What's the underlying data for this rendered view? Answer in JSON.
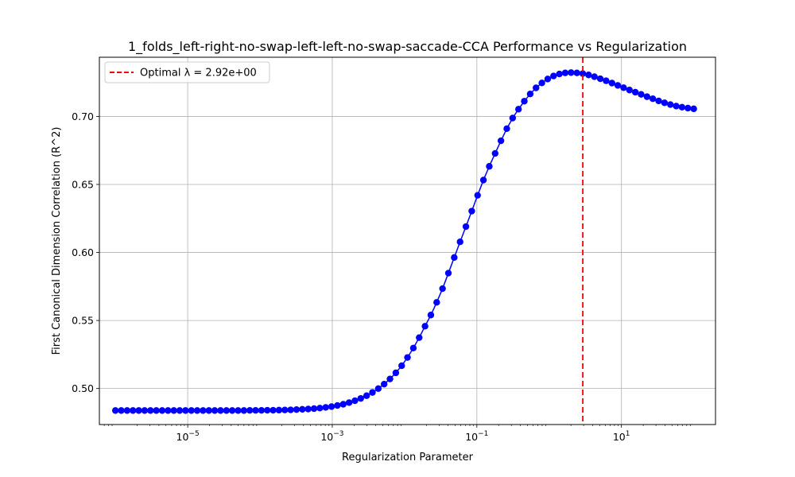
{
  "chart_data": {
    "type": "line",
    "title": "1_folds_left-right-no-swap-left-left-no-swap-saccade-CCA Performance vs Regularization",
    "xlabel": "Regularization Parameter",
    "ylabel": "First Canonical Dimension Correlation (R^2)",
    "xscale": "log",
    "xlim": [
      6e-07,
      200.0
    ],
    "ylim": [
      0.4735,
      0.7435
    ],
    "grid": true,
    "x_ticks": [
      {
        "value": 1e-05,
        "base": "10",
        "exp": "−5"
      },
      {
        "value": 0.001,
        "base": "10",
        "exp": "−3"
      },
      {
        "value": 0.1,
        "base": "10",
        "exp": "−1"
      },
      {
        "value": 10,
        "base": "10",
        "exp": "1"
      }
    ],
    "y_ticks": [
      "0.50",
      "0.55",
      "0.60",
      "0.65",
      "0.70"
    ],
    "series": [
      {
        "color": "#0000ff",
        "marker": "circle",
        "log10_x_start": -6,
        "log10_x_end": 2,
        "y": [
          0.4838,
          0.4838,
          0.4838,
          0.4838,
          0.4838,
          0.4838,
          0.4838,
          0.4838,
          0.4838,
          0.4838,
          0.4838,
          0.4838,
          0.4838,
          0.4838,
          0.4838,
          0.4838,
          0.4838,
          0.4838,
          0.4838,
          0.4838,
          0.4838,
          0.4838,
          0.4838,
          0.4839,
          0.4839,
          0.4839,
          0.484,
          0.484,
          0.4841,
          0.4842,
          0.4843,
          0.4845,
          0.4847,
          0.4849,
          0.4852,
          0.4856,
          0.4861,
          0.4867,
          0.4875,
          0.4884,
          0.4896,
          0.491,
          0.4927,
          0.4947,
          0.4971,
          0.4999,
          0.5032,
          0.507,
          0.5115,
          0.5167,
          0.5228,
          0.5297,
          0.5374,
          0.5458,
          0.554,
          0.5633,
          0.5734,
          0.5848,
          0.5963,
          0.6078,
          0.619,
          0.6304,
          0.642,
          0.6532,
          0.6633,
          0.6728,
          0.6821,
          0.691,
          0.6988,
          0.7053,
          0.7112,
          0.7165,
          0.721,
          0.7246,
          0.7275,
          0.7297,
          0.7312,
          0.732,
          0.7322,
          0.732,
          0.7315,
          0.7305,
          0.7292,
          0.7277,
          0.7262,
          0.7245,
          0.7228,
          0.7211,
          0.7194,
          0.7178,
          0.7162,
          0.7145,
          0.713,
          0.7114,
          0.71,
          0.7087,
          0.7076,
          0.7068,
          0.7061,
          0.7056
        ]
      }
    ],
    "vline": {
      "x": 2.92,
      "color": "#ff0000",
      "style": "dashed"
    },
    "legend": {
      "position": "top-left",
      "entries": [
        {
          "label": "Optimal λ = 2.92e+00",
          "color": "#ff0000",
          "style": "dashed"
        }
      ]
    }
  }
}
